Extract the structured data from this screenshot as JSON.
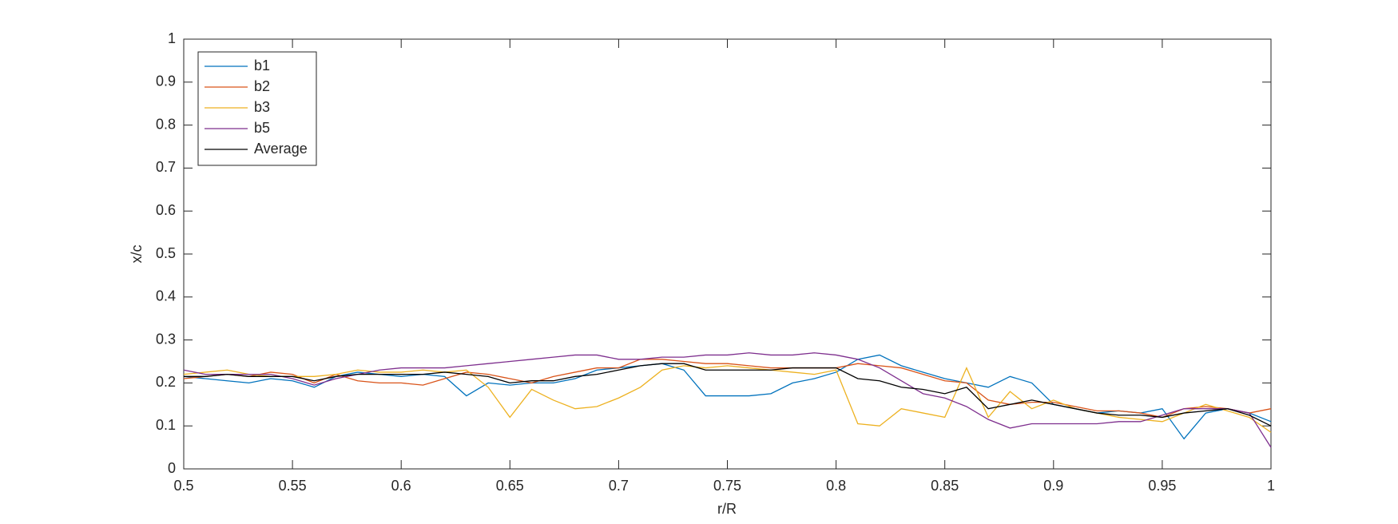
{
  "chart_data": {
    "type": "line",
    "x": [
      0.5,
      0.51,
      0.52,
      0.53,
      0.54,
      0.55,
      0.56,
      0.57,
      0.58,
      0.59,
      0.6,
      0.61,
      0.62,
      0.63,
      0.64,
      0.65,
      0.66,
      0.67,
      0.68,
      0.69,
      0.7,
      0.71,
      0.72,
      0.73,
      0.74,
      0.75,
      0.76,
      0.77,
      0.78,
      0.79,
      0.8,
      0.81,
      0.82,
      0.83,
      0.84,
      0.85,
      0.86,
      0.87,
      0.88,
      0.89,
      0.9,
      0.91,
      0.92,
      0.93,
      0.94,
      0.95,
      0.96,
      0.97,
      0.98,
      0.99,
      1.0
    ],
    "series": [
      {
        "name": "b1",
        "color": "#0072bd",
        "values": [
          0.215,
          0.21,
          0.205,
          0.2,
          0.21,
          0.205,
          0.19,
          0.215,
          0.225,
          0.22,
          0.215,
          0.22,
          0.215,
          0.17,
          0.2,
          0.195,
          0.2,
          0.2,
          0.21,
          0.23,
          0.235,
          0.24,
          0.245,
          0.23,
          0.17,
          0.17,
          0.17,
          0.175,
          0.2,
          0.21,
          0.225,
          0.255,
          0.265,
          0.24,
          0.225,
          0.21,
          0.2,
          0.19,
          0.215,
          0.2,
          0.15,
          0.14,
          0.13,
          0.135,
          0.13,
          0.14,
          0.07,
          0.13,
          0.14,
          0.13,
          0.11
        ]
      },
      {
        "name": "b2",
        "color": "#d95319",
        "values": [
          0.21,
          0.215,
          0.22,
          0.215,
          0.225,
          0.22,
          0.2,
          0.22,
          0.205,
          0.2,
          0.2,
          0.195,
          0.21,
          0.225,
          0.22,
          0.21,
          0.2,
          0.215,
          0.225,
          0.235,
          0.235,
          0.255,
          0.255,
          0.25,
          0.245,
          0.245,
          0.24,
          0.235,
          0.235,
          0.235,
          0.235,
          0.245,
          0.24,
          0.235,
          0.22,
          0.205,
          0.2,
          0.16,
          0.15,
          0.155,
          0.155,
          0.145,
          0.135,
          0.135,
          0.13,
          0.12,
          0.14,
          0.145,
          0.14,
          0.13,
          0.14
        ]
      },
      {
        "name": "b3",
        "color": "#edb120",
        "values": [
          0.22,
          0.225,
          0.23,
          0.22,
          0.215,
          0.215,
          0.215,
          0.22,
          0.23,
          0.225,
          0.225,
          0.23,
          0.225,
          0.23,
          0.19,
          0.12,
          0.185,
          0.16,
          0.14,
          0.145,
          0.165,
          0.19,
          0.23,
          0.24,
          0.235,
          0.24,
          0.235,
          0.23,
          0.225,
          0.22,
          0.23,
          0.105,
          0.1,
          0.14,
          0.13,
          0.12,
          0.235,
          0.12,
          0.18,
          0.14,
          0.16,
          0.14,
          0.13,
          0.12,
          0.115,
          0.11,
          0.13,
          0.15,
          0.135,
          0.12,
          0.085
        ]
      },
      {
        "name": "b5",
        "color": "#7e2f8e",
        "values": [
          0.23,
          0.22,
          0.22,
          0.22,
          0.22,
          0.21,
          0.195,
          0.21,
          0.22,
          0.23,
          0.235,
          0.235,
          0.235,
          0.24,
          0.245,
          0.25,
          0.255,
          0.26,
          0.265,
          0.265,
          0.255,
          0.255,
          0.26,
          0.26,
          0.265,
          0.265,
          0.27,
          0.265,
          0.265,
          0.27,
          0.265,
          0.255,
          0.235,
          0.205,
          0.175,
          0.165,
          0.145,
          0.115,
          0.095,
          0.105,
          0.105,
          0.105,
          0.105,
          0.11,
          0.11,
          0.125,
          0.14,
          0.14,
          0.14,
          0.13,
          0.05
        ]
      },
      {
        "name": "Average",
        "color": "#000000",
        "values": [
          0.215,
          0.215,
          0.22,
          0.215,
          0.215,
          0.215,
          0.205,
          0.215,
          0.22,
          0.22,
          0.22,
          0.22,
          0.225,
          0.22,
          0.215,
          0.2,
          0.205,
          0.205,
          0.215,
          0.22,
          0.23,
          0.24,
          0.245,
          0.245,
          0.23,
          0.23,
          0.23,
          0.23,
          0.235,
          0.235,
          0.235,
          0.21,
          0.205,
          0.19,
          0.185,
          0.175,
          0.19,
          0.14,
          0.15,
          0.16,
          0.15,
          0.14,
          0.13,
          0.125,
          0.125,
          0.12,
          0.13,
          0.135,
          0.14,
          0.125,
          0.1
        ]
      }
    ],
    "xlabel": "r/R",
    "ylabel": "x/c",
    "xlim": [
      0.5,
      1
    ],
    "ylim": [
      0,
      1
    ],
    "xticks": [
      0.5,
      0.55,
      0.6,
      0.65,
      0.7,
      0.75,
      0.8,
      0.85,
      0.9,
      0.95,
      1
    ],
    "yticks": [
      0,
      0.1,
      0.2,
      0.3,
      0.4,
      0.5,
      0.6,
      0.7,
      0.8,
      0.9,
      1
    ],
    "legend": "upper left"
  }
}
